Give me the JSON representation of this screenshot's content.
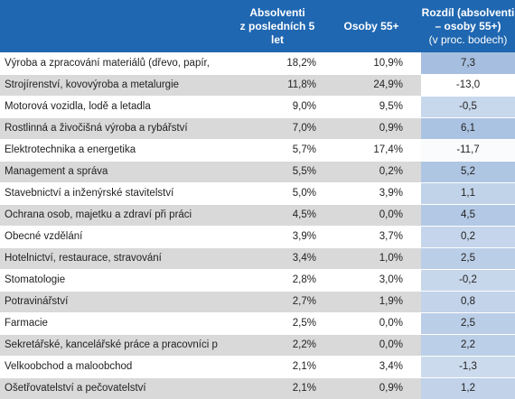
{
  "chart_data": {
    "type": "table",
    "columns": [
      "",
      "Absolventi\nz posledních 5 let",
      "Osoby 55+",
      "Rozdíl (absolventi\n– osoby 55+)",
      "(v proc. bodech)"
    ],
    "rows": [
      {
        "name": "Výroba a zpracování materiálů (dřevo, papír,",
        "absolventi": "18,2%",
        "osoby55": "10,9%",
        "rozdil": "7,3",
        "diff_value": 7.3
      },
      {
        "name": "Strojírenství, kovovýroba a metalurgie",
        "absolventi": "11,8%",
        "osoby55": "24,9%",
        "rozdil": "-13,0",
        "diff_value": -13.0
      },
      {
        "name": "Motorová vozidla, lodě a letadla",
        "absolventi": "9,0%",
        "osoby55": "9,5%",
        "rozdil": "-0,5",
        "diff_value": -0.5
      },
      {
        "name": "Rostlinná a živočišná výroba a rybářství",
        "absolventi": "7,0%",
        "osoby55": "0,9%",
        "rozdil": "6,1",
        "diff_value": 6.1
      },
      {
        "name": "Elektrotechnika a energetika",
        "absolventi": "5,7%",
        "osoby55": "17,4%",
        "rozdil": "-11,7",
        "diff_value": -11.7
      },
      {
        "name": "Management a správa",
        "absolventi": "5,5%",
        "osoby55": "0,2%",
        "rozdil": "5,2",
        "diff_value": 5.2
      },
      {
        "name": "Stavebnictví a inženýrské stavitelství",
        "absolventi": "5,0%",
        "osoby55": "3,9%",
        "rozdil": "1,1",
        "diff_value": 1.1
      },
      {
        "name": "Ochrana osob, majetku a zdraví při práci",
        "absolventi": "4,5%",
        "osoby55": "0,0%",
        "rozdil": "4,5",
        "diff_value": 4.5
      },
      {
        "name": "Obecné vzdělání",
        "absolventi": "3,9%",
        "osoby55": "3,7%",
        "rozdil": "0,2",
        "diff_value": 0.2
      },
      {
        "name": "Hotelnictví, restaurace, stravování",
        "absolventi": "3,4%",
        "osoby55": "1,0%",
        "rozdil": "2,5",
        "diff_value": 2.5
      },
      {
        "name": "Stomatologie",
        "absolventi": "2,8%",
        "osoby55": "3,0%",
        "rozdil": "-0,2",
        "diff_value": -0.2
      },
      {
        "name": "Potravinářství",
        "absolventi": "2,7%",
        "osoby55": "1,9%",
        "rozdil": "0,8",
        "diff_value": 0.8
      },
      {
        "name": "Farmacie",
        "absolventi": "2,5%",
        "osoby55": "0,0%",
        "rozdil": "2,5",
        "diff_value": 2.5
      },
      {
        "name": "Sekretářské, kancelářské práce a pracovníci p",
        "absolventi": "2,2%",
        "osoby55": "0,0%",
        "rozdil": "2,2",
        "diff_value": 2.2
      },
      {
        "name": "Velkoobchod a maloobchod",
        "absolventi": "2,1%",
        "osoby55": "3,4%",
        "rozdil": "-1,3",
        "diff_value": -1.3
      },
      {
        "name": "Ošetřovatelství a pečovatelství",
        "absolventi": "2,1%",
        "osoby55": "0,9%",
        "rozdil": "1,2",
        "diff_value": 1.2
      }
    ]
  },
  "colors": {
    "header_bg": "#1f67b1",
    "row_odd": "#ffffff",
    "row_even": "#d9d9d9",
    "diff_low": "#ffffff",
    "diff_high": "#a6bfe0"
  }
}
